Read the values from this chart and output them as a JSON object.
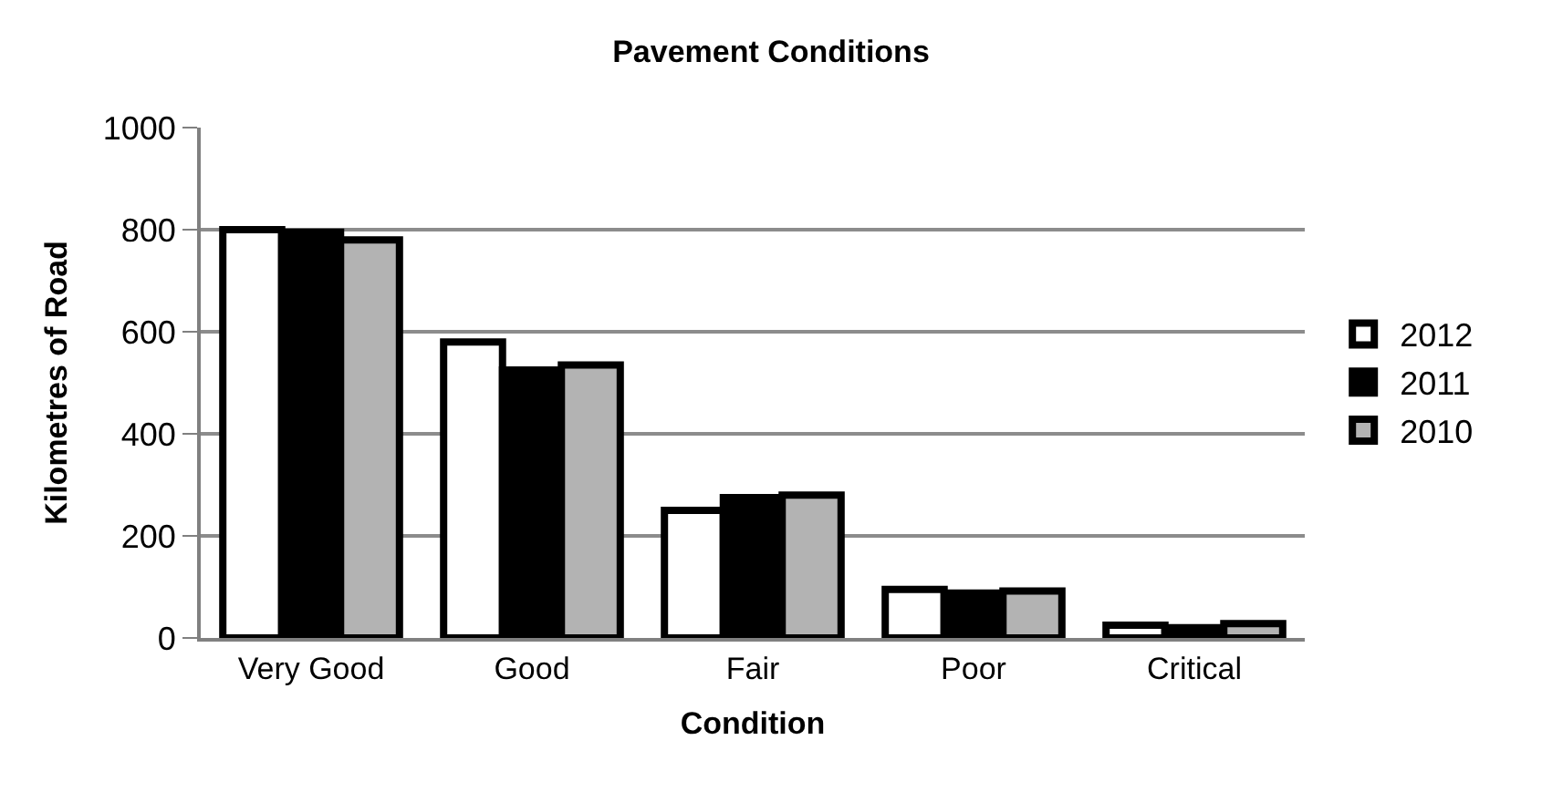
{
  "chart_data": {
    "type": "bar",
    "title": "Pavement Conditions",
    "xlabel": "Condition",
    "ylabel": "Kilometres of Road",
    "categories": [
      "Very Good",
      "Good",
      "Fair",
      "Poor",
      "Critical"
    ],
    "series": [
      {
        "name": "2012",
        "color": "#ffffff",
        "values": [
          800,
          580,
          250,
          95,
          25
        ]
      },
      {
        "name": "2011",
        "color": "#000000",
        "values": [
          795,
          525,
          275,
          88,
          20
        ]
      },
      {
        "name": "2010",
        "color": "#b3b3b3",
        "values": [
          780,
          535,
          280,
          92,
          28
        ]
      }
    ],
    "ylim": [
      0,
      1000
    ],
    "yticks": [
      0,
      200,
      400,
      600,
      800,
      1000
    ],
    "grid": "y",
    "legend": "right"
  }
}
